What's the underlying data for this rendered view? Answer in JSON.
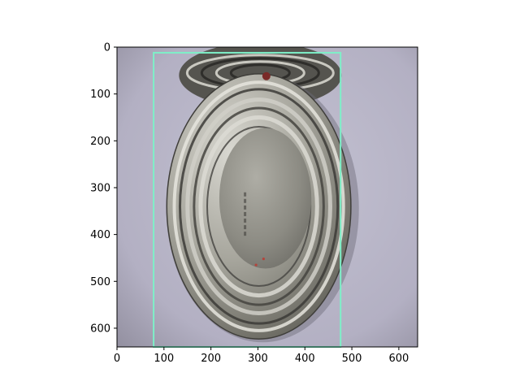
{
  "figure": {
    "x_axis": {
      "range": [
        0,
        640
      ],
      "ticks": [
        0,
        100,
        200,
        300,
        400,
        500,
        600
      ]
    },
    "y_axis": {
      "range": [
        0,
        640
      ],
      "ticks": [
        0,
        100,
        200,
        300,
        400,
        500,
        600
      ],
      "inverted": true
    },
    "grid": false
  },
  "image": {
    "subject": "top-down photo of a shiny round metal tin can lid with concentric ridges, resting on a light lavender-grey surface",
    "background_color": "#b3b0c3",
    "metal_color": "#8f8e86"
  },
  "bounding_box": {
    "x_min": 78,
    "y_min": 12,
    "x_max": 476,
    "y_max": 640,
    "color": "#7ef0c8"
  }
}
